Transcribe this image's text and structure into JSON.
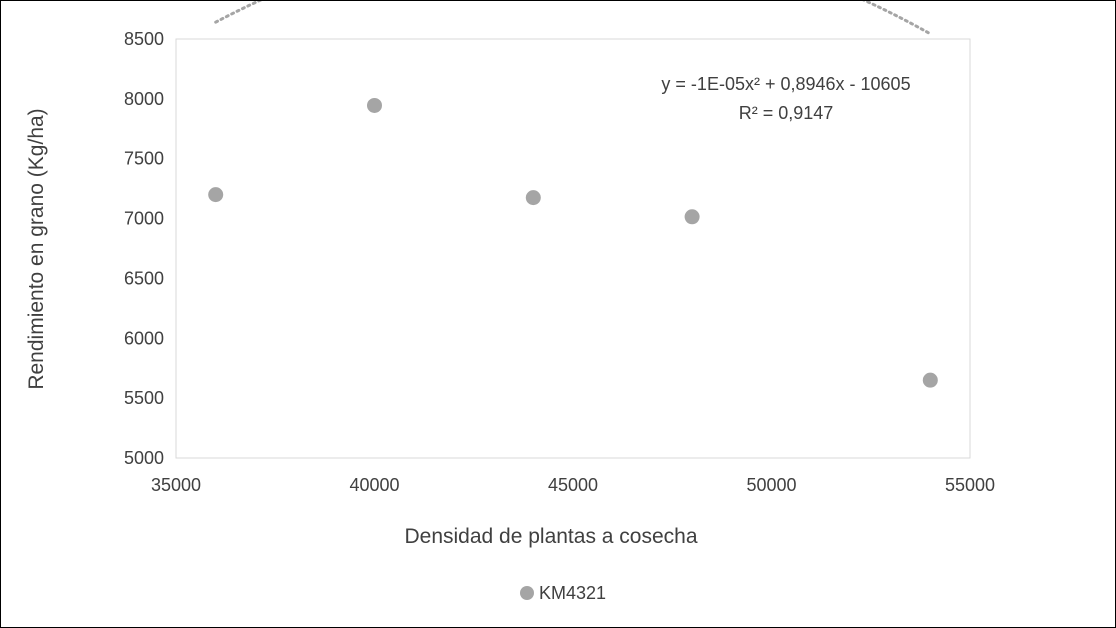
{
  "chart_data": {
    "type": "scatter",
    "xlabel": "Densidad de plantas a cosecha",
    "ylabel": "Rendimiento en grano (Kg/ha)",
    "xlim": [
      35000,
      55000
    ],
    "ylim": [
      5000,
      8500
    ],
    "x_ticks": [
      35000,
      40000,
      45000,
      50000,
      55000
    ],
    "y_ticks": [
      5000,
      5500,
      6000,
      6500,
      7000,
      7500,
      8000,
      8500
    ],
    "x_tick_labels": [
      "35000",
      "40000",
      "45000",
      "50000",
      "55000"
    ],
    "y_tick_labels": [
      "5000",
      "5500",
      "6000",
      "6500",
      "7000",
      "7500",
      "8000",
      "8500"
    ],
    "grid": false,
    "legend_position": "bottom",
    "series": [
      {
        "name": "KM4321",
        "color": "#a5a5a5",
        "points": [
          {
            "x": 36000,
            "y": 7200
          },
          {
            "x": 40000,
            "y": 7945
          },
          {
            "x": 44000,
            "y": 7175
          },
          {
            "x": 48000,
            "y": 7015
          },
          {
            "x": 54000,
            "y": 5650
          }
        ]
      }
    ],
    "trendline": {
      "type": "polynomial",
      "order": 2,
      "coefficients": [
        -1e-05,
        0.8946,
        -10605
      ],
      "x_range": [
        36000,
        54000
      ],
      "color": "#a5a5a5",
      "style": "dotted",
      "equation_text": "y = -1E-05x² + 0,8946x - 10605",
      "r2_text": "R² = 0,9147"
    }
  }
}
